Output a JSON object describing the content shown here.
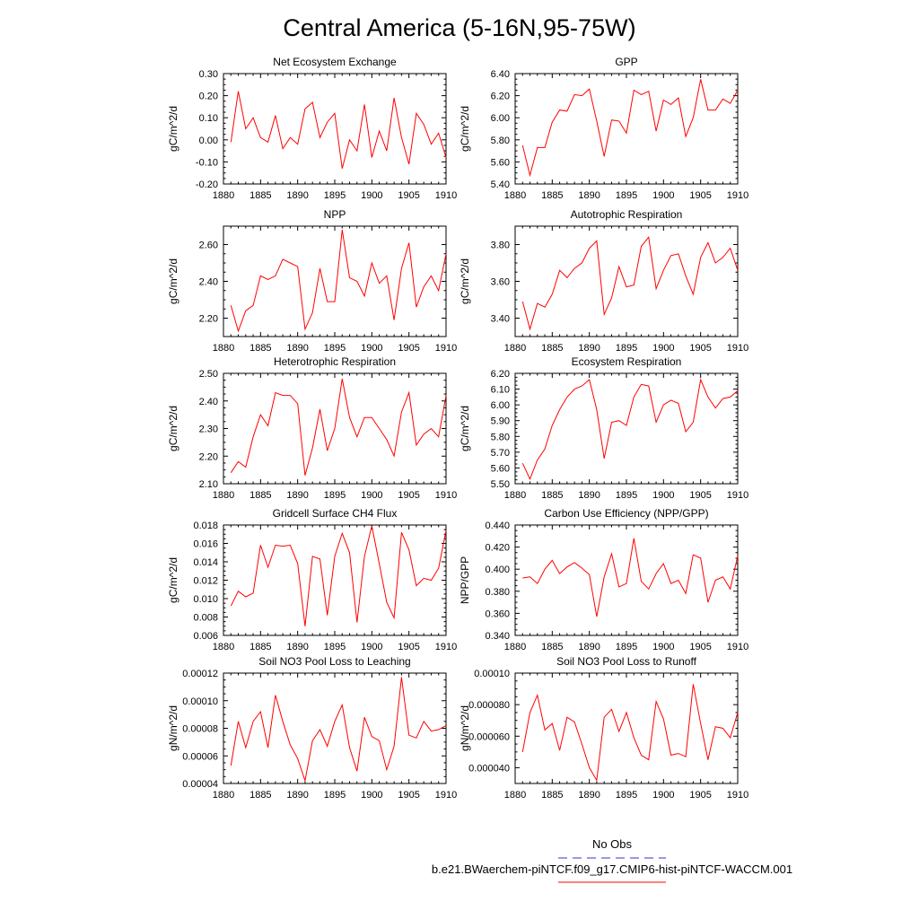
{
  "figure": {
    "title": "Central America (5-16N,95-75W)",
    "legend": {
      "obs_label": "No Obs",
      "obs_color": "#3333cc",
      "model_label": "b.e21.BWaerchem-piNTCF.f09_g17.CMIP6-hist-piNTCF-WACCM.001",
      "model_color": "#ff0000"
    }
  },
  "chart_data": [
    {
      "type": "line",
      "title": "Net Ecosystem Exchange",
      "ylabel": "gC/m^2/d",
      "xlim": [
        1880,
        1910
      ],
      "xticks": [
        "1880",
        "1885",
        "1890",
        "1895",
        "1900",
        "1905",
        "1910"
      ],
      "ylim": [
        -0.2,
        0.3
      ],
      "yticks": [
        "-0.20",
        "-0.10",
        "0.00",
        "0.10",
        "0.20",
        "0.30"
      ],
      "x": [
        1881,
        1882,
        1883,
        1884,
        1885,
        1886,
        1887,
        1888,
        1889,
        1890,
        1891,
        1892,
        1893,
        1894,
        1895,
        1896,
        1897,
        1898,
        1899,
        1900,
        1901,
        1902,
        1903,
        1904,
        1905,
        1906,
        1907,
        1908,
        1909,
        1910
      ],
      "series": [
        {
          "values": [
            -0.01,
            0.22,
            0.05,
            0.1,
            0.01,
            -0.01,
            0.11,
            -0.04,
            0.01,
            -0.02,
            0.14,
            0.17,
            0.01,
            0.08,
            0.12,
            -0.13,
            0.0,
            -0.05,
            0.16,
            -0.08,
            0.04,
            -0.05,
            0.19,
            0.01,
            -0.11,
            0.12,
            0.07,
            -0.02,
            0.03,
            -0.08
          ]
        }
      ]
    },
    {
      "type": "line",
      "title": "GPP",
      "ylabel": "gC/m^2/d",
      "xlim": [
        1880,
        1910
      ],
      "xticks": [
        "1880",
        "1885",
        "1890",
        "1895",
        "1900",
        "1905",
        "1910"
      ],
      "ylim": [
        5.4,
        6.4
      ],
      "yticks": [
        "5.40",
        "5.60",
        "5.80",
        "6.00",
        "6.20",
        "6.40"
      ],
      "x": [
        1881,
        1882,
        1883,
        1884,
        1885,
        1886,
        1887,
        1888,
        1889,
        1890,
        1891,
        1892,
        1893,
        1894,
        1895,
        1896,
        1897,
        1898,
        1899,
        1900,
        1901,
        1902,
        1903,
        1904,
        1905,
        1906,
        1907,
        1908,
        1909,
        1910
      ],
      "series": [
        {
          "values": [
            5.75,
            5.48,
            5.73,
            5.73,
            5.96,
            6.07,
            6.06,
            6.21,
            6.2,
            6.26,
            5.97,
            5.65,
            5.98,
            5.97,
            5.86,
            6.25,
            6.21,
            6.24,
            5.88,
            6.16,
            6.12,
            6.18,
            5.83,
            6.0,
            6.35,
            6.07,
            6.07,
            6.17,
            6.13,
            6.25
          ]
        }
      ]
    },
    {
      "type": "line",
      "title": "NPP",
      "ylabel": "gC/m^2/d",
      "xlim": [
        1880,
        1910
      ],
      "xticks": [
        "1880",
        "1885",
        "1890",
        "1895",
        "1900",
        "1905",
        "1910"
      ],
      "ylim": [
        2.1,
        2.7
      ],
      "yticks": [
        "2.20",
        "2.40",
        "2.60"
      ],
      "x": [
        1881,
        1882,
        1883,
        1884,
        1885,
        1886,
        1887,
        1888,
        1889,
        1890,
        1891,
        1892,
        1893,
        1894,
        1895,
        1896,
        1897,
        1898,
        1899,
        1900,
        1901,
        1902,
        1903,
        1904,
        1905,
        1906,
        1907,
        1908,
        1909,
        1910
      ],
      "series": [
        {
          "values": [
            2.27,
            2.13,
            2.24,
            2.27,
            2.43,
            2.41,
            2.43,
            2.52,
            2.5,
            2.48,
            2.14,
            2.23,
            2.47,
            2.29,
            2.29,
            2.68,
            2.42,
            2.4,
            2.32,
            2.5,
            2.39,
            2.43,
            2.19,
            2.47,
            2.61,
            2.26,
            2.37,
            2.43,
            2.35,
            2.55
          ]
        }
      ]
    },
    {
      "type": "line",
      "title": "Autotrophic Respiration",
      "ylabel": "gC/m^2/d",
      "xlim": [
        1880,
        1910
      ],
      "xticks": [
        "1880",
        "1885",
        "1890",
        "1895",
        "1900",
        "1905",
        "1910"
      ],
      "ylim": [
        3.3,
        3.9
      ],
      "yticks": [
        "3.40",
        "3.60",
        "3.80"
      ],
      "x": [
        1881,
        1882,
        1883,
        1884,
        1885,
        1886,
        1887,
        1888,
        1889,
        1890,
        1891,
        1892,
        1893,
        1894,
        1895,
        1896,
        1897,
        1898,
        1899,
        1900,
        1901,
        1902,
        1903,
        1904,
        1905,
        1906,
        1907,
        1908,
        1909,
        1910
      ],
      "series": [
        {
          "values": [
            3.49,
            3.34,
            3.48,
            3.46,
            3.53,
            3.66,
            3.62,
            3.67,
            3.7,
            3.78,
            3.82,
            3.42,
            3.51,
            3.68,
            3.57,
            3.58,
            3.79,
            3.84,
            3.56,
            3.66,
            3.74,
            3.75,
            3.63,
            3.53,
            3.73,
            3.81,
            3.7,
            3.73,
            3.78,
            3.66
          ]
        }
      ]
    },
    {
      "type": "line",
      "title": "Heterotrophic Respiration",
      "ylabel": "gC/m^2/d",
      "xlim": [
        1880,
        1910
      ],
      "xticks": [
        "1880",
        "1885",
        "1890",
        "1895",
        "1900",
        "1905",
        "1910"
      ],
      "ylim": [
        2.1,
        2.5
      ],
      "yticks": [
        "2.10",
        "2.20",
        "2.30",
        "2.40",
        "2.50"
      ],
      "x": [
        1881,
        1882,
        1883,
        1884,
        1885,
        1886,
        1887,
        1888,
        1889,
        1890,
        1891,
        1892,
        1893,
        1894,
        1895,
        1896,
        1897,
        1898,
        1899,
        1900,
        1901,
        1902,
        1903,
        1904,
        1905,
        1906,
        1907,
        1908,
        1909,
        1910
      ],
      "series": [
        {
          "values": [
            2.14,
            2.18,
            2.16,
            2.27,
            2.35,
            2.31,
            2.43,
            2.42,
            2.42,
            2.39,
            2.13,
            2.23,
            2.37,
            2.22,
            2.3,
            2.48,
            2.34,
            2.27,
            2.34,
            2.34,
            2.3,
            2.26,
            2.2,
            2.36,
            2.43,
            2.24,
            2.28,
            2.3,
            2.27,
            2.42
          ]
        }
      ]
    },
    {
      "type": "line",
      "title": "Ecosystem Respiration",
      "ylabel": "gC/m^2/d",
      "xlim": [
        1880,
        1910
      ],
      "xticks": [
        "1880",
        "1885",
        "1890",
        "1895",
        "1900",
        "1905",
        "1910"
      ],
      "ylim": [
        5.5,
        6.2
      ],
      "yticks": [
        "5.50",
        "5.60",
        "5.70",
        "5.80",
        "5.90",
        "6.00",
        "6.10",
        "6.20"
      ],
      "x": [
        1881,
        1882,
        1883,
        1884,
        1885,
        1886,
        1887,
        1888,
        1889,
        1890,
        1891,
        1892,
        1893,
        1894,
        1895,
        1896,
        1897,
        1898,
        1899,
        1900,
        1901,
        1902,
        1903,
        1904,
        1905,
        1906,
        1907,
        1908,
        1909,
        1910
      ],
      "series": [
        {
          "values": [
            5.63,
            5.53,
            5.65,
            5.72,
            5.87,
            5.97,
            6.05,
            6.1,
            6.12,
            6.16,
            5.97,
            5.66,
            5.89,
            5.9,
            5.87,
            6.05,
            6.13,
            6.12,
            5.89,
            6.0,
            6.03,
            6.01,
            5.83,
            5.89,
            6.16,
            6.05,
            5.98,
            6.04,
            6.05,
            6.09
          ]
        }
      ]
    },
    {
      "type": "line",
      "title": "Gridcell Surface CH4 Flux",
      "ylabel": "gC/m^2/d",
      "xlim": [
        1880,
        1910
      ],
      "xticks": [
        "1880",
        "1885",
        "1890",
        "1895",
        "1900",
        "1905",
        "1910"
      ],
      "ylim": [
        0.006,
        0.018
      ],
      "yticks": [
        "0.006",
        "0.008",
        "0.010",
        "0.012",
        "0.014",
        "0.016",
        "0.018"
      ],
      "x": [
        1881,
        1882,
        1883,
        1884,
        1885,
        1886,
        1887,
        1888,
        1889,
        1890,
        1891,
        1892,
        1893,
        1894,
        1895,
        1896,
        1897,
        1898,
        1899,
        1900,
        1901,
        1902,
        1903,
        1904,
        1905,
        1906,
        1907,
        1908,
        1909,
        1910
      ],
      "series": [
        {
          "values": [
            0.0092,
            0.0108,
            0.0102,
            0.0106,
            0.0158,
            0.0134,
            0.0158,
            0.0157,
            0.0158,
            0.0138,
            0.007,
            0.0146,
            0.0143,
            0.0082,
            0.0146,
            0.0171,
            0.015,
            0.0074,
            0.0146,
            0.0179,
            0.0138,
            0.0096,
            0.0079,
            0.0172,
            0.0153,
            0.0114,
            0.0122,
            0.012,
            0.0133,
            0.0174
          ]
        }
      ]
    },
    {
      "type": "line",
      "title": "Carbon Use Efficiency (NPP/GPP)",
      "ylabel": "NPP/GPP",
      "xlim": [
        1880,
        1910
      ],
      "xticks": [
        "1880",
        "1885",
        "1890",
        "1895",
        "1900",
        "1905",
        "1910"
      ],
      "ylim": [
        0.34,
        0.44
      ],
      "yticks": [
        "0.340",
        "0.360",
        "0.380",
        "0.400",
        "0.420",
        "0.440"
      ],
      "x": [
        1881,
        1882,
        1883,
        1884,
        1885,
        1886,
        1887,
        1888,
        1889,
        1890,
        1891,
        1892,
        1893,
        1894,
        1895,
        1896,
        1897,
        1898,
        1899,
        1900,
        1901,
        1902,
        1903,
        1904,
        1905,
        1906,
        1907,
        1908,
        1909,
        1910
      ],
      "series": [
        {
          "values": [
            0.392,
            0.393,
            0.387,
            0.4,
            0.408,
            0.396,
            0.402,
            0.406,
            0.401,
            0.395,
            0.357,
            0.393,
            0.414,
            0.384,
            0.387,
            0.428,
            0.389,
            0.382,
            0.396,
            0.405,
            0.387,
            0.39,
            0.378,
            0.413,
            0.41,
            0.37,
            0.39,
            0.393,
            0.382,
            0.412
          ]
        }
      ]
    },
    {
      "type": "line",
      "title": "Soil NO3 Pool Loss to Leaching",
      "ylabel": "gN/m^2/d",
      "xlim": [
        1880,
        1910
      ],
      "xticks": [
        "1880",
        "1885",
        "1890",
        "1895",
        "1900",
        "1905",
        "1910"
      ],
      "ylim": [
        4e-05,
        0.00012
      ],
      "yticks": [
        "0.00004",
        "0.00006",
        "0.00008",
        "0.00010",
        "0.00012"
      ],
      "x": [
        1881,
        1882,
        1883,
        1884,
        1885,
        1886,
        1887,
        1888,
        1889,
        1890,
        1891,
        1892,
        1893,
        1894,
        1895,
        1896,
        1897,
        1898,
        1899,
        1900,
        1901,
        1902,
        1903,
        1904,
        1905,
        1906,
        1907,
        1908,
        1909,
        1910
      ],
      "series": [
        {
          "values": [
            5.3e-05,
            8.5e-05,
            6.6e-05,
            8.5e-05,
            9.2e-05,
            6.6e-05,
            0.000104,
            8.5e-05,
            6.8e-05,
            5.8e-05,
            4.2e-05,
            7.1e-05,
            7.9e-05,
            6.7e-05,
            8.5e-05,
            9.7e-05,
            6.6e-05,
            4.9e-05,
            8.8e-05,
            7.4e-05,
            7.1e-05,
            5e-05,
            6.7e-05,
            0.000117,
            7.5e-05,
            7.3e-05,
            8.5e-05,
            7.8e-05,
            7.9e-05,
            8.2e-05
          ]
        }
      ]
    },
    {
      "type": "line",
      "title": "Soil NO3 Pool Loss to Runoff",
      "ylabel": "gN/m^2/d",
      "xlim": [
        1880,
        1910
      ],
      "xticks": [
        "1880",
        "1885",
        "1890",
        "1895",
        "1900",
        "1905",
        "1910"
      ],
      "ylim": [
        3e-05,
        0.0001
      ],
      "yticks": [
        "0.000040",
        "0.000060",
        "0.000080",
        "0.00010"
      ],
      "x": [
        1881,
        1882,
        1883,
        1884,
        1885,
        1886,
        1887,
        1888,
        1889,
        1890,
        1891,
        1892,
        1893,
        1894,
        1895,
        1896,
        1897,
        1898,
        1899,
        1900,
        1901,
        1902,
        1903,
        1904,
        1905,
        1906,
        1907,
        1908,
        1909,
        1910
      ],
      "series": [
        {
          "values": [
            5e-05,
            7.5e-05,
            8.6e-05,
            6.4e-05,
            6.8e-05,
            5.1e-05,
            7.2e-05,
            6.9e-05,
            5.5e-05,
            4e-05,
            3.2e-05,
            7.2e-05,
            7.7e-05,
            6.3e-05,
            7.5e-05,
            5.9e-05,
            4.8e-05,
            4.5e-05,
            8.2e-05,
            7.1e-05,
            4.8e-05,
            4.9e-05,
            4.7e-05,
            9.3e-05,
            6.8e-05,
            4.5e-05,
            6.6e-05,
            6.5e-05,
            5.9e-05,
            7.5e-05
          ]
        }
      ]
    }
  ]
}
